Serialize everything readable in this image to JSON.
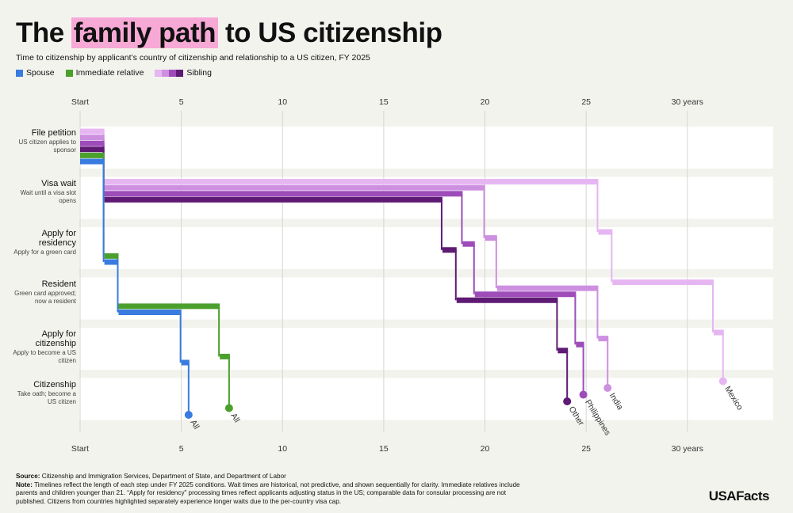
{
  "chart_data": {
    "type": "step-path",
    "title": [
      "The",
      "family path",
      "to US citizenship"
    ],
    "subtitle": "Time to citizenship by applicant’s country of citizenship and relationship to a US citizen, FY 2025",
    "legend": [
      "Spouse",
      "Immediate relative",
      "Sibling"
    ],
    "stages": [
      {
        "label": "File petition",
        "description": "US citizen applies to sponsor"
      },
      {
        "label": "Visa wait",
        "description": "Wait until a visa slot opens"
      },
      {
        "label": "Apply for residency",
        "description": "Apply for a green card"
      },
      {
        "label": "Resident",
        "description": "Green card approved; now a resident"
      },
      {
        "label": "Apply for citizenship",
        "description": "Apply to become a US citizen"
      },
      {
        "label": "Citizenship",
        "description": "Take oath; become a US citizen"
      }
    ],
    "series": [
      {
        "name": "Mexico",
        "group": 2,
        "color": "#e6b6f2",
        "values": [
          1.2,
          24.4,
          0.7,
          5.0,
          0.5
        ]
      },
      {
        "name": "India",
        "group": 2,
        "color": "#cd90e0",
        "values": [
          1.2,
          18.8,
          0.6,
          5.0,
          0.5
        ]
      },
      {
        "name": "Philippines",
        "group": 2,
        "color": "#9d4cba",
        "values": [
          1.2,
          17.7,
          0.6,
          5.0,
          0.4
        ]
      },
      {
        "name": "Other",
        "group": 2,
        "color": "#5e1a74",
        "values": [
          1.2,
          16.7,
          0.7,
          5.0,
          0.5
        ]
      },
      {
        "name": "All",
        "group": 1,
        "color": "#4ba02d",
        "values": [
          1.2,
          0,
          0.7,
          5.0,
          0.5
        ]
      },
      {
        "name": "All",
        "group": 0,
        "color": "#3a7be0",
        "values": [
          1.2,
          0,
          0.7,
          3.1,
          0.4
        ]
      }
    ],
    "xlim": [
      0,
      34.2
    ],
    "xticks": [
      {
        "value": 0,
        "label": "Start"
      },
      5,
      10,
      15,
      20,
      25,
      {
        "value": 30,
        "label": "30 years"
      }
    ],
    "grid": true,
    "source_label": "Source:",
    "source": "Citizenship and Immigration Services, Department of State, and Department of Labor",
    "note_label": "Note:",
    "note": "Timelines reflect the length of each step under FY 2025 conditions. Wait times are historical, not predictive, and shown sequentially for clarity. Immediate relatives include parents and children younger than 21. “Apply for residency” processing times reflect applicants adjusting status in the US; comparable data for consular processing are not published. Citizens from countries highlighted separately experience longer waits due to the per-country visa cap.",
    "logo": "USAFacts"
  }
}
